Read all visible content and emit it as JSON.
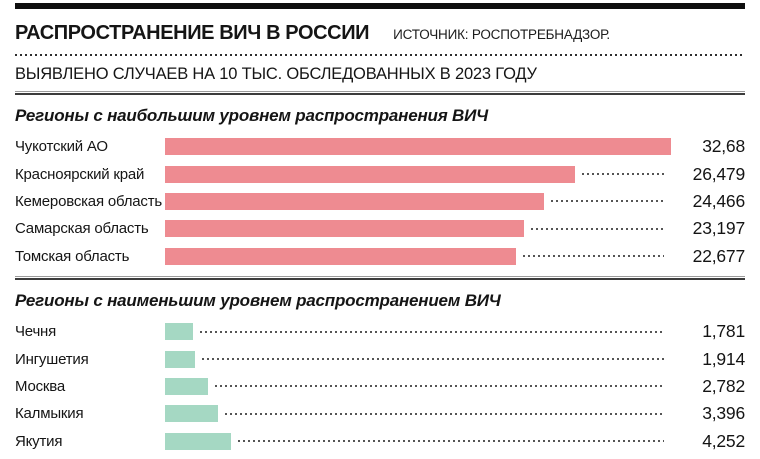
{
  "header": {
    "title": "РАСПРОСТРАНЕНИЕ ВИЧ В РОССИИ",
    "source": "ИСТОЧНИК: РОСПОТРЕБНАДЗОР.",
    "subtitle": "ВЫЯВЛЕНО СЛУЧАЕВ НА 10 ТЫС. ОБСЛЕДОВАННЫХ В 2023 ГОДУ"
  },
  "colors": {
    "high_bar": "#ee8b91",
    "low_bar": "#a5d8c3",
    "text": "#151515",
    "topbar": "#0e0e0e"
  },
  "chart_data": [
    {
      "type": "bar",
      "orientation": "horizontal",
      "title": "Регионы с наибольшим уровнем распространения ВИЧ",
      "categories": [
        "Чукотский АО",
        "Красноярский край",
        "Кемеровская область",
        "Самарская область",
        "Томская область"
      ],
      "values": [
        32.68,
        26.479,
        24.466,
        23.197,
        22.677
      ],
      "value_labels": [
        "32,68",
        "26,479",
        "24,466",
        "23,197",
        "22,677"
      ],
      "bar_color": "#ee8b91",
      "xlim": [
        0,
        32.68
      ],
      "grid": false,
      "legend": "none"
    },
    {
      "type": "bar",
      "orientation": "horizontal",
      "title": "Регионы с наименьшим уровнем распространением ВИЧ",
      "categories": [
        "Чечня",
        "Ингушетия",
        "Москва",
        "Калмыкия",
        "Якутия"
      ],
      "values": [
        1.781,
        1.914,
        2.782,
        3.396,
        4.252
      ],
      "value_labels": [
        "1,781",
        "1,914",
        "2,782",
        "3,396",
        "4,252"
      ],
      "bar_color": "#a5d8c3",
      "xlim": [
        0,
        32.68
      ],
      "grid": false,
      "legend": "none"
    }
  ]
}
